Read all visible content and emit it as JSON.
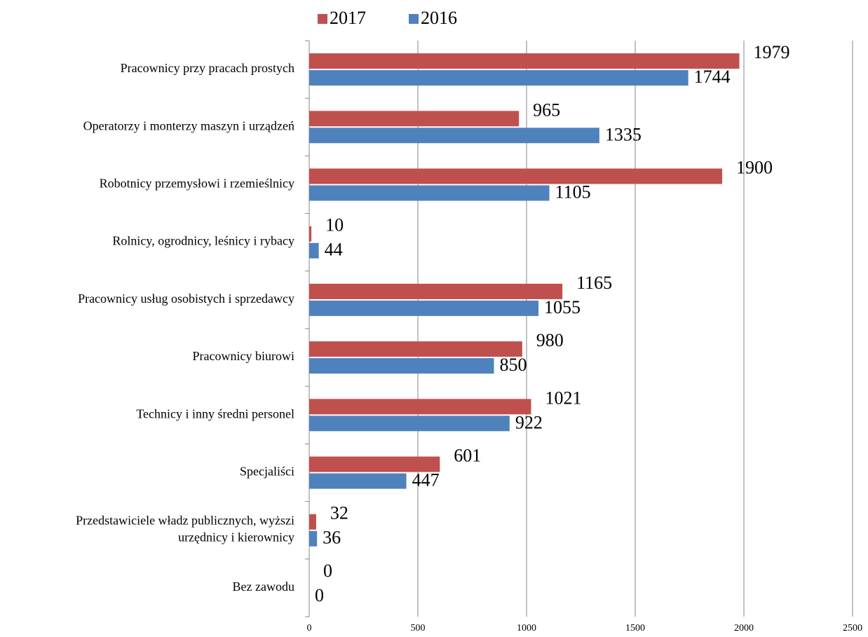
{
  "chart_data": {
    "type": "bar",
    "orientation": "horizontal",
    "categories": [
      "Pracownicy przy pracach prostych",
      "Operatorzy i monterzy maszyn i urządzeń",
      "Robotnicy przemysłowi i rzemieślnicy",
      "Rolnicy, ogrodnicy, leśnicy i rybacy",
      "Pracownicy usług osobistych i sprzedawcy",
      "Pracownicy biurowi",
      "Technicy i inny średni personel",
      "Specjaliści",
      "Przedstawiciele władz publicznych, wyższi\nurzędnicy i kierownicy",
      "Bez zawodu"
    ],
    "series": [
      {
        "name": "2017",
        "color": "#c0504d",
        "values": [
          1979,
          965,
          1900,
          10,
          1165,
          980,
          1021,
          601,
          32,
          0
        ]
      },
      {
        "name": "2016",
        "color": "#4f81bd",
        "values": [
          1744,
          1335,
          1105,
          44,
          1055,
          850,
          922,
          447,
          36,
          0
        ]
      }
    ],
    "xlim": [
      0,
      2500
    ],
    "xticks": [
      0,
      500,
      1000,
      1500,
      2000,
      2500
    ],
    "grid": true,
    "legend": "top"
  }
}
